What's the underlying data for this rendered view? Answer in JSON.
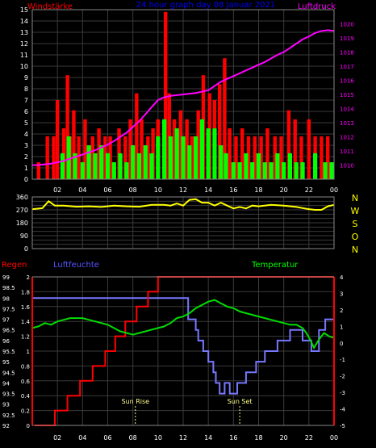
{
  "chart_data": [
    {
      "type": "bar",
      "title": "24 hour graph day  08 Januar 2021",
      "ylabel": "Windstärke",
      "y2label": "Luftdruck",
      "ylim": [
        0,
        15
      ],
      "y2lim": [
        1009,
        1021
      ],
      "y_ticks": [
        "0",
        "1",
        "2",
        "3",
        "4",
        "5",
        "6",
        "7",
        "8",
        "9",
        "10",
        "11",
        "12",
        "13",
        "14",
        "15"
      ],
      "y2_ticks": [
        "1010",
        "1011",
        "1012",
        "1013",
        "1014",
        "1015",
        "1016",
        "1017",
        "1018",
        "1019",
        "1020"
      ],
      "x_ticks": [
        "02",
        "04",
        "06",
        "08",
        "10",
        "12",
        "14",
        "16",
        "18",
        "20",
        "22",
        "00"
      ],
      "grid": true,
      "colors": {
        "gust": "#ff0000",
        "wind": "#00ff00",
        "pressure": "#ff00ff",
        "title": "#0000ff",
        "left_label": "#ff0000",
        "right_label": "#ff00ff"
      },
      "pressure": {
        "x": [
          0,
          0.5,
          1,
          1.5,
          2,
          2.5,
          3,
          3.5,
          4,
          4.5,
          5,
          5.5,
          6,
          6.5,
          7,
          7.5,
          8,
          8.5,
          9,
          9.5,
          10,
          10.5,
          11,
          11.5,
          12,
          12.5,
          13,
          13.5,
          14,
          14.5,
          15,
          15.5,
          16,
          16.5,
          17,
          17.5,
          18,
          18.5,
          19,
          19.5,
          20,
          20.5,
          21,
          21.5,
          22,
          22.5,
          23,
          23.5,
          24
        ],
        "values": [
          1010.0,
          1010.0,
          1010.05,
          1010.1,
          1010.2,
          1010.3,
          1010.45,
          1010.6,
          1010.75,
          1010.9,
          1011.05,
          1011.25,
          1011.45,
          1011.7,
          1012.0,
          1012.3,
          1012.7,
          1013.1,
          1013.6,
          1014.1,
          1014.6,
          1014.8,
          1014.9,
          1014.95,
          1015.0,
          1015.05,
          1015.1,
          1015.2,
          1015.3,
          1015.6,
          1015.9,
          1016.1,
          1016.3,
          1016.5,
          1016.7,
          1016.9,
          1017.1,
          1017.3,
          1017.55,
          1017.8,
          1018.0,
          1018.3,
          1018.6,
          1018.9,
          1019.1,
          1019.35,
          1019.5,
          1019.55,
          1019.5
        ]
      },
      "gust_x": [
        0.5,
        1.2,
        1.7,
        2.0,
        2.5,
        2.8,
        3.0,
        3.3,
        3.7,
        4.2,
        4.8,
        5.3,
        5.8,
        6.2,
        6.9,
        7.4,
        7.8,
        8.3,
        8.7,
        9.2,
        9.6,
        10.0,
        10.6,
        10.9,
        11.3,
        11.8,
        12.3,
        12.7,
        13.2,
        13.6,
        14.1,
        14.5,
        14.9,
        15.3,
        15.7,
        16.2,
        16.7,
        17.2,
        17.7,
        18.2,
        18.7,
        19.3,
        19.8,
        20.4,
        20.9,
        21.4,
        22.0,
        22.5,
        23.0,
        23.5
      ],
      "gust_values": [
        1.5,
        3.8,
        3.8,
        7.0,
        4.5,
        9.2,
        3.8,
        6.1,
        3.8,
        5.3,
        3.8,
        4.5,
        3.8,
        3.8,
        4.5,
        3.8,
        5.3,
        7.6,
        5.3,
        3.8,
        4.5,
        5.3,
        14.8,
        7.6,
        5.3,
        6.1,
        5.3,
        3.8,
        6.1,
        9.2,
        7.6,
        7.0,
        8.4,
        10.7,
        4.5,
        3.8,
        4.5,
        3.8,
        3.8,
        3.8,
        4.5,
        3.8,
        3.8,
        6.1,
        5.3,
        3.8,
        5.3,
        3.8,
        3.8,
        3.8
      ],
      "wind_x": [
        2.4,
        2.9,
        3.4,
        4.0,
        4.5,
        5.0,
        5.5,
        6.0,
        6.5,
        7.0,
        7.5,
        8.0,
        8.5,
        9.0,
        9.5,
        10.0,
        10.5,
        11.0,
        11.5,
        12.0,
        12.5,
        13.0,
        13.5,
        14.0,
        14.5,
        15.0,
        15.4,
        16.0,
        16.5,
        17.0,
        17.5,
        18.0,
        18.5,
        19.0,
        19.5,
        20.0,
        20.5,
        21.0,
        21.5,
        22.5,
        23.3,
        23.8
      ],
      "wind_values": [
        2.3,
        3.8,
        2.3,
        1.5,
        3.0,
        2.3,
        3.0,
        2.3,
        1.5,
        2.3,
        1.5,
        3.0,
        2.3,
        3.0,
        2.3,
        3.8,
        5.3,
        3.8,
        4.5,
        3.8,
        3.0,
        3.8,
        5.3,
        4.5,
        4.5,
        3.0,
        2.3,
        1.5,
        1.5,
        2.3,
        1.5,
        2.3,
        1.5,
        1.5,
        2.3,
        1.5,
        2.3,
        1.5,
        1.5,
        2.3,
        1.5,
        1.5
      ]
    },
    {
      "type": "line",
      "ylim": [
        0,
        360
      ],
      "y_ticks": [
        "0",
        "30",
        "60",
        "90",
        "120",
        "150",
        "180",
        "210",
        "240",
        "270",
        "300",
        "330",
        "360"
      ],
      "direction_labels": [
        "N",
        "W",
        "S",
        "O",
        "N"
      ],
      "colors": {
        "direction": "#ffff00",
        "labels": "#ffff00"
      },
      "x": [
        0,
        0.8,
        1.3,
        1.8,
        2.5,
        3.5,
        4.5,
        5.5,
        6.5,
        7.5,
        8.5,
        9.5,
        10.5,
        11.0,
        11.5,
        12.0,
        12.5,
        13.0,
        13.5,
        14.0,
        14.5,
        15.0,
        15.5,
        16.0,
        16.5,
        17.0,
        17.5,
        18.0,
        19.0,
        20.0,
        21.0,
        22.0,
        22.5,
        23.0,
        23.5,
        24.0
      ],
      "values": [
        275,
        282,
        330,
        300,
        300,
        292,
        295,
        290,
        300,
        295,
        292,
        305,
        305,
        300,
        315,
        300,
        340,
        345,
        320,
        320,
        300,
        320,
        300,
        280,
        290,
        280,
        300,
        295,
        305,
        300,
        290,
        275,
        270,
        270,
        295,
        305
      ]
    },
    {
      "type": "line",
      "label_left": "Regen",
      "label_humidity": "Luftfeuchte",
      "label_temperature": "Temperatur",
      "rain_lim": [
        0,
        2
      ],
      "humidity_lim": [
        92,
        99
      ],
      "temperature_lim": [
        -5,
        4
      ],
      "rain_ticks": [
        "0",
        "0.2",
        "0.4",
        "0.6",
        "0.8",
        "1",
        "1.2",
        "1.4",
        "1.6",
        "1.8",
        "2"
      ],
      "humidity_ticks": [
        "92",
        "92.5",
        "93",
        "93.5",
        "94",
        "94.5",
        "95",
        "95.5",
        "96",
        "96.5",
        "97",
        "97.5",
        "98",
        "98.5",
        "99"
      ],
      "temperature_ticks": [
        "4",
        "3",
        "2",
        "1",
        "0",
        "-1",
        "-2",
        "-3",
        "-4",
        "-5"
      ],
      "x_ticks": [
        "02",
        "04",
        "06",
        "08",
        "10",
        "12",
        "14",
        "16",
        "18",
        "20",
        "22",
        "00"
      ],
      "sun_rise_label": "Sun Rise",
      "sun_set_label": "Sun Set",
      "sun_rise_x": 8.2,
      "sun_set_x": 16.5,
      "colors": {
        "rain": "#ff0000",
        "humidity": "#7777ff",
        "temperature": "#00dd00",
        "sun_text": "#ffff88",
        "left_label": "#ff0000",
        "humidity_label": "#5555ff",
        "temperature_label": "#00ff00"
      },
      "rain": {
        "x": [
          0.2,
          1.8,
          2.8,
          3.8,
          4.8,
          5.8,
          6.6,
          7.4,
          8.3,
          9.2,
          10.0,
          24.0
        ],
        "values": [
          0.0,
          0.2,
          0.4,
          0.6,
          0.8,
          1.0,
          1.2,
          1.4,
          1.6,
          1.8,
          2.0,
          2.0
        ]
      },
      "humidity": {
        "x": [
          0,
          12.4,
          13.0,
          13.2,
          13.6,
          14.0,
          14.4,
          14.6,
          14.9,
          15.3,
          15.7,
          16.3,
          17.0,
          17.8,
          18.5,
          19.5,
          20.5,
          21.5,
          22.2,
          22.8,
          23.3,
          24.0
        ],
        "values": [
          98.0,
          97.0,
          96.5,
          96.0,
          95.5,
          95.0,
          94.5,
          94.0,
          93.5,
          94.0,
          93.5,
          94.0,
          94.5,
          95.0,
          95.5,
          96.0,
          96.5,
          96.0,
          95.5,
          96.5,
          97.0,
          97.0
        ]
      },
      "temperature": {
        "x": [
          0,
          0.5,
          1.0,
          1.5,
          2.0,
          2.5,
          3.0,
          3.5,
          4.0,
          4.5,
          5.0,
          5.5,
          6.0,
          6.5,
          7.0,
          7.5,
          8.0,
          8.5,
          9.0,
          9.5,
          10.0,
          10.5,
          11.0,
          11.5,
          12.0,
          12.5,
          13.0,
          13.5,
          14.0,
          14.5,
          15.0,
          15.5,
          16.0,
          16.5,
          17.0,
          17.5,
          18.0,
          18.5,
          19.0,
          19.5,
          20.0,
          20.5,
          21.0,
          21.5,
          21.8,
          22.1,
          22.4,
          22.8,
          23.2,
          23.6,
          24.0
        ],
        "values": [
          0.9,
          1.0,
          1.2,
          1.1,
          1.3,
          1.4,
          1.5,
          1.5,
          1.5,
          1.4,
          1.3,
          1.2,
          1.1,
          0.9,
          0.7,
          0.6,
          0.5,
          0.6,
          0.7,
          0.8,
          0.9,
          1.0,
          1.2,
          1.5,
          1.6,
          1.8,
          2.1,
          2.3,
          2.5,
          2.6,
          2.4,
          2.2,
          2.1,
          1.9,
          1.8,
          1.7,
          1.6,
          1.5,
          1.4,
          1.3,
          1.2,
          1.1,
          1.1,
          0.9,
          0.6,
          0.2,
          -0.3,
          0.2,
          0.6,
          0.4,
          0.3
        ]
      }
    }
  ]
}
